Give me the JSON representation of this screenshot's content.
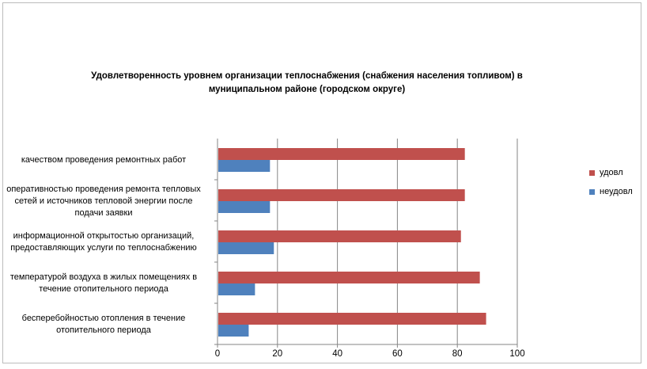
{
  "chart_data": {
    "type": "bar",
    "orientation": "horizontal",
    "title": "Удовлетворенность уровнем организации теплоснабжения (снабжения населения топливом) в муниципальном районе (городском округе)",
    "title_lines": [
      "Удовлетворенность уровнем организации теплоснабжения (снабжения населения топливом) в",
      "муниципальном районе (городском округе)"
    ],
    "categories": [
      "качеством проведения ремонтных работ",
      "оперативностью проведения ремонта тепловых сетей и источников тепловой энергии после подачи заявки",
      "информационной открытостью организаций, предоставляющих услуги по теплоснабжению",
      "температурой воздуха в жилых помещениях в течение отопительного периода",
      "бесперебойностью отопления в течение отопительного периода"
    ],
    "category_lines": [
      [
        "качеством проведения ремонтных работ"
      ],
      [
        "оперативностью проведения ремонта тепловых",
        "сетей и источников тепловой энергии после",
        "подачи заявки"
      ],
      [
        "информационной открытостью организаций,",
        "предоставляющих услуги по теплоснабжению"
      ],
      [
        "температурой воздуха в жилых помещениях в",
        "течение отопительного периода"
      ],
      [
        "бесперебойностью отопления в течение",
        "отопительного периода"
      ]
    ],
    "series": [
      {
        "name": "удовл",
        "color": "#c0504d",
        "values": [
          82.5,
          82.5,
          81.2,
          87.5,
          89.6
        ]
      },
      {
        "name": "неудовл",
        "color": "#4f81bd",
        "values": [
          17.5,
          17.5,
          18.8,
          12.5,
          10.4
        ]
      }
    ],
    "xlim": [
      0,
      100
    ],
    "xticks": [
      "0",
      "20",
      "40",
      "60",
      "80",
      "100"
    ],
    "grid": true,
    "legend": "right"
  }
}
